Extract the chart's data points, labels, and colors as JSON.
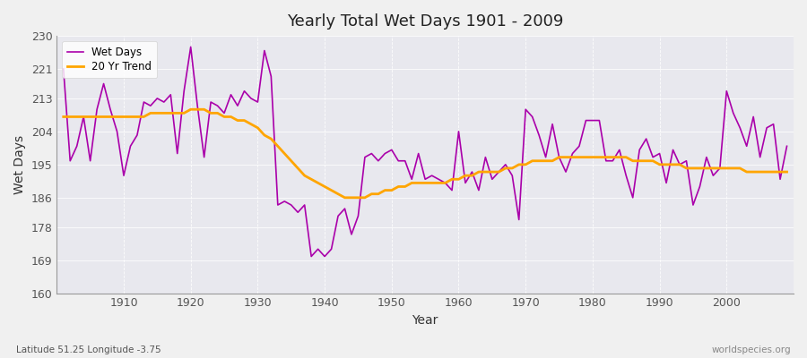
{
  "title": "Yearly Total Wet Days 1901 - 2009",
  "xlabel": "Year",
  "ylabel": "Wet Days",
  "bottom_left_text": "Latitude 51.25 Longitude -3.75",
  "bottom_right_text": "worldspecies.org",
  "ylim": [
    160,
    230
  ],
  "yticks": [
    160,
    169,
    178,
    186,
    195,
    204,
    213,
    221,
    230
  ],
  "wet_days_color": "#AA00AA",
  "trend_color": "#FFA500",
  "fig_bg_color": "#F0F0F0",
  "plot_bg_color": "#E8E8EE",
  "wet_days_label": "Wet Days",
  "trend_label": "20 Yr Trend",
  "years": [
    1901,
    1902,
    1903,
    1904,
    1905,
    1906,
    1907,
    1908,
    1909,
    1910,
    1911,
    1912,
    1913,
    1914,
    1915,
    1916,
    1917,
    1918,
    1919,
    1920,
    1921,
    1922,
    1923,
    1924,
    1925,
    1926,
    1927,
    1928,
    1929,
    1930,
    1931,
    1932,
    1933,
    1934,
    1935,
    1936,
    1937,
    1938,
    1939,
    1940,
    1941,
    1942,
    1943,
    1944,
    1945,
    1946,
    1947,
    1948,
    1949,
    1950,
    1951,
    1952,
    1953,
    1954,
    1955,
    1956,
    1957,
    1958,
    1959,
    1960,
    1961,
    1962,
    1963,
    1964,
    1965,
    1966,
    1967,
    1968,
    1969,
    1970,
    1971,
    1972,
    1973,
    1974,
    1975,
    1976,
    1977,
    1978,
    1979,
    1980,
    1981,
    1982,
    1983,
    1984,
    1985,
    1986,
    1987,
    1988,
    1989,
    1990,
    1991,
    1992,
    1993,
    1994,
    1995,
    1996,
    1997,
    1998,
    1999,
    2000,
    2001,
    2002,
    2003,
    2004,
    2005,
    2006,
    2007,
    2008,
    2009
  ],
  "wet_days": [
    221,
    196,
    200,
    208,
    196,
    210,
    217,
    210,
    204,
    192,
    200,
    203,
    212,
    211,
    213,
    212,
    214,
    198,
    215,
    227,
    211,
    197,
    212,
    211,
    209,
    214,
    211,
    215,
    213,
    212,
    226,
    219,
    184,
    185,
    184,
    182,
    184,
    170,
    172,
    170,
    172,
    181,
    183,
    176,
    181,
    197,
    198,
    196,
    198,
    199,
    196,
    196,
    191,
    198,
    191,
    192,
    191,
    190,
    188,
    204,
    190,
    193,
    188,
    197,
    191,
    193,
    195,
    192,
    180,
    210,
    208,
    203,
    197,
    206,
    197,
    193,
    198,
    200,
    207,
    207,
    207,
    196,
    196,
    199,
    192,
    186,
    199,
    202,
    197,
    198,
    190,
    199,
    195,
    196,
    184,
    189,
    197,
    192,
    194,
    215,
    209,
    205,
    200,
    208,
    197,
    205,
    206,
    191,
    200
  ],
  "trend": [
    208,
    208,
    208,
    208,
    208,
    208,
    208,
    208,
    208,
    208,
    208,
    208,
    208,
    209,
    209,
    209,
    209,
    209,
    209,
    210,
    210,
    210,
    209,
    209,
    208,
    208,
    207,
    207,
    206,
    205,
    203,
    202,
    200,
    198,
    196,
    194,
    192,
    191,
    190,
    189,
    188,
    187,
    186,
    186,
    186,
    186,
    187,
    187,
    188,
    188,
    189,
    189,
    190,
    190,
    190,
    190,
    190,
    190,
    191,
    191,
    192,
    192,
    193,
    193,
    193,
    193,
    194,
    194,
    195,
    195,
    196,
    196,
    196,
    196,
    197,
    197,
    197,
    197,
    197,
    197,
    197,
    197,
    197,
    197,
    197,
    196,
    196,
    196,
    196,
    195,
    195,
    195,
    195,
    194,
    194,
    194,
    194,
    194,
    194,
    194,
    194,
    194,
    193,
    193,
    193,
    193,
    193,
    193,
    193
  ]
}
